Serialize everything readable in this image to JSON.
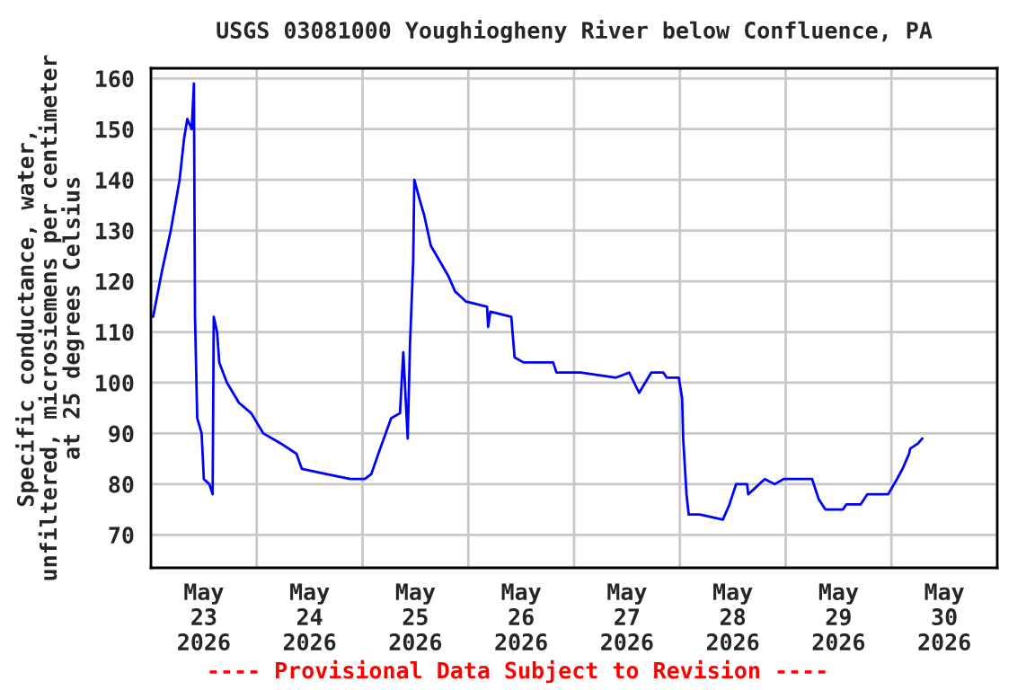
{
  "chart_data": {
    "type": "line",
    "title": "USGS 03081000 Youghiogheny River below Confluence, PA",
    "ylabel": "Specific conductance, water,\nunfiltered, microsiemens per centimeter\nat 25 degrees Celsius",
    "annotations": [
      "---- Provisional Data Subject to Revision ----"
    ],
    "x": [
      "2026-05-23T00:30",
      "2026-05-23T02:30",
      "2026-05-23T04:30",
      "2026-05-23T06:30",
      "2026-05-23T07:30",
      "2026-05-23T08:15",
      "2026-05-23T09:15",
      "2026-05-23T09:45",
      "2026-05-23T10:00",
      "2026-05-23T10:30",
      "2026-05-23T11:30",
      "2026-05-23T12:00",
      "2026-05-23T13:15",
      "2026-05-23T14:00",
      "2026-05-23T14:15",
      "2026-05-23T15:00",
      "2026-05-23T15:30",
      "2026-05-23T17:15",
      "2026-05-23T20:00",
      "2026-05-23T22:45",
      "2026-05-24T01:30",
      "2026-05-24T05:30",
      "2026-05-24T09:00",
      "2026-05-24T10:15",
      "2026-05-24T15:45",
      "2026-05-24T21:15",
      "2026-05-24T22:30",
      "2026-05-25T00:30",
      "2026-05-25T02:00",
      "2026-05-25T04:00",
      "2026-05-25T06:30",
      "2026-05-25T08:30",
      "2026-05-25T09:15",
      "2026-05-25T10:15",
      "2026-05-25T10:45",
      "2026-05-25T11:30",
      "2026-05-25T11:45",
      "2026-05-25T13:00",
      "2026-05-25T14:00",
      "2026-05-25T15:30",
      "2026-05-25T17:30",
      "2026-05-25T19:30",
      "2026-05-25T21:00",
      "2026-05-25T23:30",
      "2026-05-26T04:15",
      "2026-05-26T04:30",
      "2026-05-26T05:00",
      "2026-05-26T09:45",
      "2026-05-26T10:30",
      "2026-05-26T12:30",
      "2026-05-26T19:15",
      "2026-05-26T20:00",
      "2026-05-27T01:30",
      "2026-05-27T09:30",
      "2026-05-27T12:30",
      "2026-05-27T14:45",
      "2026-05-27T17:30",
      "2026-05-27T20:15",
      "2026-05-27T21:00",
      "2026-05-27T23:45",
      "2026-05-28T00:30",
      "2026-05-28T00:45",
      "2026-05-28T01:30",
      "2026-05-28T02:00",
      "2026-05-28T04:30",
      "2026-05-28T09:45",
      "2026-05-28T11:15",
      "2026-05-28T12:45",
      "2026-05-28T15:15",
      "2026-05-28T15:30",
      "2026-05-28T18:00",
      "2026-05-28T19:15",
      "2026-05-28T21:30",
      "2026-05-28T23:30",
      "2026-05-29T00:45",
      "2026-05-29T06:00",
      "2026-05-29T07:30",
      "2026-05-29T09:00",
      "2026-05-29T13:00",
      "2026-05-29T13:45",
      "2026-05-29T17:00",
      "2026-05-29T18:30",
      "2026-05-29T21:15",
      "2026-05-29T22:00",
      "2026-05-29T23:15",
      "2026-05-30T01:15",
      "2026-05-30T02:30",
      "2026-05-30T04:00",
      "2026-05-30T04:15",
      "2026-05-30T06:00",
      "2026-05-30T07:00"
    ],
    "series": [
      {
        "color": "#0000ff",
        "values": [
          113,
          122,
          130,
          140,
          148,
          152,
          150,
          159,
          113,
          93,
          90,
          81,
          80,
          78,
          113,
          110,
          104,
          100,
          96,
          94,
          90,
          88,
          86,
          83,
          82,
          81,
          81,
          81,
          82,
          87,
          93,
          94,
          106,
          89,
          107,
          124,
          140,
          136,
          133,
          127,
          124,
          121,
          118,
          116,
          115,
          111,
          114,
          113,
          105,
          104,
          104,
          102,
          102,
          101,
          102,
          98,
          102,
          102,
          101,
          101,
          97,
          89,
          78,
          74,
          74,
          73,
          76,
          80,
          80,
          78,
          80,
          81,
          80,
          81,
          81,
          81,
          77,
          75,
          75,
          76,
          76,
          78,
          78,
          78,
          78,
          81,
          83,
          86,
          87,
          88,
          89
        ]
      }
    ],
    "xlim": [
      "2026-05-23T00:00",
      "2026-05-31T00:00"
    ],
    "xticks": [
      {
        "value": "2026-05-23T00:00",
        "label": null
      },
      {
        "value": "2026-05-24T00:00",
        "label": null
      },
      {
        "value": "2026-05-25T00:00",
        "label": null
      },
      {
        "value": "2026-05-26T00:00",
        "label": null
      },
      {
        "value": "2026-05-27T00:00",
        "label": null
      },
      {
        "value": "2026-05-28T00:00",
        "label": null
      },
      {
        "value": "2026-05-29T00:00",
        "label": null
      },
      {
        "value": "2026-05-30T00:00",
        "label": null
      },
      {
        "value": "2026-05-31T00:00",
        "label": null
      },
      {
        "value": "2026-05-23T12:00",
        "label": "May\n23\n2026"
      },
      {
        "value": "2026-05-24T12:00",
        "label": "May\n24\n2026"
      },
      {
        "value": "2026-05-25T12:00",
        "label": "May\n25\n2026"
      },
      {
        "value": "2026-05-26T12:00",
        "label": "May\n26\n2026"
      },
      {
        "value": "2026-05-27T12:00",
        "label": "May\n27\n2026"
      },
      {
        "value": "2026-05-28T12:00",
        "label": "May\n28\n2026"
      },
      {
        "value": "2026-05-29T12:00",
        "label": "May\n29\n2026"
      },
      {
        "value": "2026-05-30T12:00",
        "label": "May\n30\n2026"
      }
    ],
    "ylim": [
      63.5,
      162
    ],
    "yticks": [
      70,
      80,
      90,
      100,
      110,
      120,
      130,
      140,
      150,
      160
    ],
    "grid": true,
    "marker": "none",
    "line_style": "solid",
    "legend": false
  }
}
